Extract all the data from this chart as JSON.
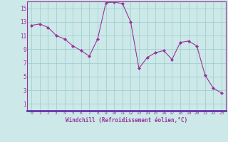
{
  "x": [
    0,
    1,
    2,
    3,
    4,
    5,
    6,
    7,
    8,
    9,
    10,
    11,
    12,
    13,
    14,
    15,
    16,
    17,
    18,
    19,
    20,
    21,
    22,
    23
  ],
  "y": [
    12.5,
    12.7,
    12.2,
    11.0,
    10.5,
    9.5,
    8.8,
    8.0,
    10.5,
    15.8,
    15.9,
    15.7,
    13.0,
    6.2,
    7.8,
    8.5,
    8.8,
    7.5,
    10.0,
    10.2,
    9.5,
    5.2,
    3.3,
    2.6
  ],
  "line_color": "#993399",
  "marker": "D",
  "marker_size": 2,
  "bg_color": "#cce8e8",
  "grid_color": "#99cccc",
  "xlabel": "Windchill (Refroidissement éolien,°C)",
  "xlabel_color": "#993399",
  "tick_color": "#993399",
  "ylim": [
    0,
    16
  ],
  "xlim": [
    -0.5,
    23.5
  ],
  "yticks": [
    1,
    3,
    5,
    7,
    9,
    11,
    13,
    15
  ],
  "xticks": [
    0,
    1,
    2,
    3,
    4,
    5,
    6,
    7,
    8,
    9,
    10,
    11,
    12,
    13,
    14,
    15,
    16,
    17,
    18,
    19,
    20,
    21,
    22,
    23
  ],
  "spine_color": "#993399",
  "spine_bottom_color": "#6633aa"
}
